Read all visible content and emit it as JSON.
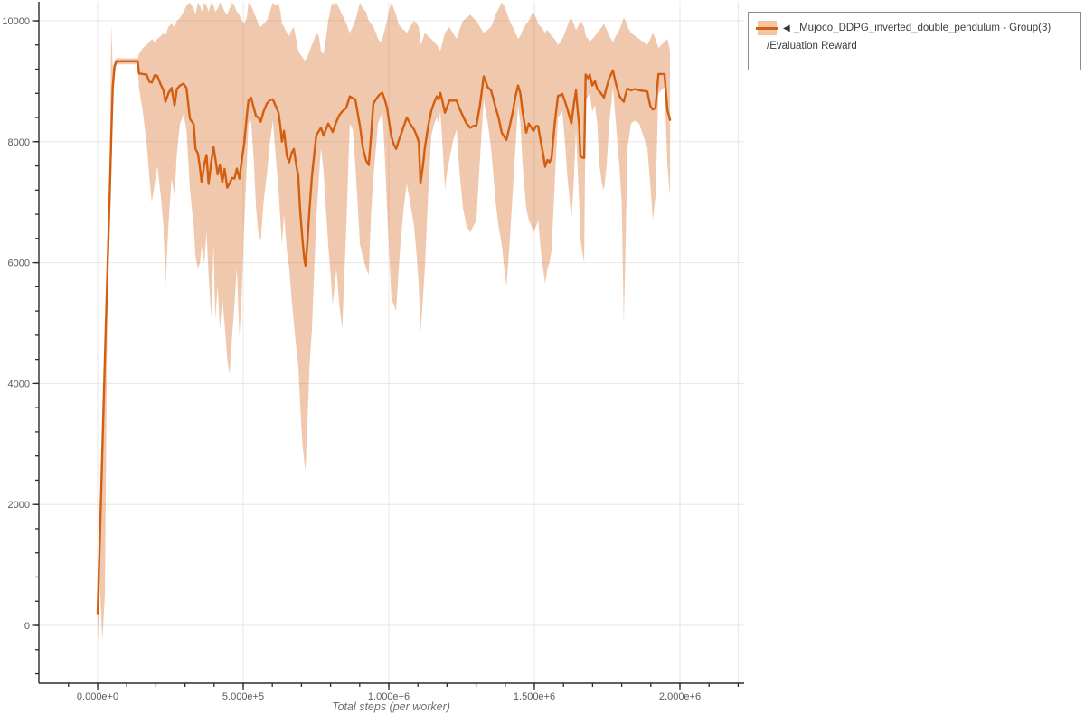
{
  "legend": {
    "collapse_icon": "◀",
    "series_label": "_Mujoco_DDPG_inverted_double_pendulum - Group(3)",
    "metric_label": "/Evaluation Reward"
  },
  "chart_data": {
    "type": "line",
    "title": "",
    "xlabel": "Total steps (per worker)",
    "ylabel": "",
    "series_name": "_Mujoco_DDPG_inverted_double_pendulum - Group(3)",
    "metric": "/Evaluation Reward",
    "line_color": "#d35e0f",
    "band_opacity": 0.34,
    "band_fill_visual": "#f2c6a2",
    "grid_color": "#e7e7e7",
    "axis_color": "#2b2b2b",
    "tick_label_color": "#5a5a5a",
    "legend_position": "top-right outside",
    "grid": "on",
    "x_axis": {
      "ticks_k": [
        0,
        500,
        1000,
        1500,
        2000
      ],
      "labels": [
        "0.000e+0",
        "5.000e+5",
        "1.000e+6",
        "1.500e+6",
        "2.000e+6"
      ],
      "minor_step_k": 100,
      "grid_extra_k": [
        2200
      ],
      "range_k": [
        -130,
        2215
      ]
    },
    "y_axis": {
      "ticks": [
        0,
        2000,
        4000,
        6000,
        8000,
        10000
      ],
      "labels": [
        "0",
        "2000",
        "4000",
        "6000",
        "8000",
        "10000"
      ],
      "minor_step": 400,
      "minor_range": [
        -800,
        10000
      ],
      "range": [
        -960,
        10330
      ]
    },
    "points_format": [
      "steps_thousands",
      "mean_reward",
      "band_low",
      "band_high"
    ],
    "points": [
      [
        0,
        200,
        -250,
        500
      ],
      [
        8,
        1500,
        600,
        1900
      ],
      [
        16,
        2900,
        -250,
        3300
      ],
      [
        25,
        4400,
        500,
        4800
      ],
      [
        34,
        5900,
        5400,
        6300
      ],
      [
        42,
        7200,
        6700,
        7700
      ],
      [
        47,
        8100,
        7500,
        9930
      ],
      [
        52,
        8900,
        8500,
        9200
      ],
      [
        58,
        9250,
        9100,
        9350
      ],
      [
        65,
        9330,
        9280,
        9380
      ],
      [
        90,
        9330,
        9280,
        9380
      ],
      [
        115,
        9330,
        9280,
        9380
      ],
      [
        138,
        9330,
        9280,
        9380
      ],
      [
        142,
        9130,
        8900,
        9450
      ],
      [
        155,
        9120,
        8500,
        9550
      ],
      [
        168,
        9110,
        8000,
        9600
      ],
      [
        178,
        8990,
        7400,
        9650
      ],
      [
        186,
        8980,
        7000,
        9700
      ],
      [
        196,
        9100,
        7300,
        9650
      ],
      [
        205,
        9090,
        7600,
        9700
      ],
      [
        217,
        8940,
        7100,
        9750
      ],
      [
        226,
        8850,
        6600,
        9800
      ],
      [
        233,
        8660,
        5600,
        9750
      ],
      [
        243,
        8800,
        6600,
        9900
      ],
      [
        254,
        8890,
        7400,
        9950
      ],
      [
        264,
        8600,
        7100,
        9900
      ],
      [
        272,
        8870,
        7800,
        10000
      ],
      [
        283,
        8930,
        8300,
        10050
      ],
      [
        295,
        8960,
        8450,
        10150
      ],
      [
        305,
        8890,
        8200,
        10250
      ],
      [
        317,
        8380,
        7200,
        10300
      ],
      [
        330,
        8290,
        6600,
        10200
      ],
      [
        336,
        7880,
        6100,
        10100
      ],
      [
        344,
        7810,
        5900,
        10300
      ],
      [
        352,
        7550,
        6000,
        10250
      ],
      [
        357,
        7330,
        6280,
        10150
      ],
      [
        366,
        7620,
        5980,
        10300
      ],
      [
        374,
        7780,
        6500,
        10250
      ],
      [
        381,
        7300,
        5800,
        10150
      ],
      [
        390,
        7660,
        5100,
        10300
      ],
      [
        398,
        7910,
        6300,
        10250
      ],
      [
        404,
        7730,
        5070,
        10150
      ],
      [
        412,
        7460,
        5600,
        10200
      ],
      [
        420,
        7610,
        4900,
        10300
      ],
      [
        428,
        7330,
        5400,
        10250
      ],
      [
        436,
        7550,
        5000,
        10150
      ],
      [
        445,
        7240,
        4400,
        10100
      ],
      [
        453,
        7310,
        4150,
        10200
      ],
      [
        462,
        7400,
        4800,
        10300
      ],
      [
        470,
        7390,
        5300,
        10250
      ],
      [
        478,
        7555,
        5900,
        10150
      ],
      [
        487,
        7390,
        4770,
        10100
      ],
      [
        495,
        7700,
        5500,
        10000
      ],
      [
        503,
        7960,
        6600,
        9950
      ],
      [
        512,
        8420,
        7600,
        10050
      ],
      [
        518,
        8680,
        8300,
        10300
      ],
      [
        527,
        8730,
        8350,
        10250
      ],
      [
        536,
        8560,
        7700,
        10150
      ],
      [
        544,
        8420,
        6900,
        10050
      ],
      [
        552,
        8400,
        6500,
        9950
      ],
      [
        560,
        8330,
        6350,
        9900
      ],
      [
        570,
        8500,
        7000,
        9950
      ],
      [
        581,
        8630,
        7450,
        10000
      ],
      [
        592,
        8690,
        8000,
        10150
      ],
      [
        602,
        8700,
        8350,
        10300
      ],
      [
        611,
        8600,
        7800,
        10250
      ],
      [
        621,
        8480,
        7200,
        10300
      ],
      [
        628,
        8240,
        6700,
        10150
      ],
      [
        633,
        8000,
        6300,
        9950
      ],
      [
        640,
        8180,
        6800,
        9900
      ],
      [
        650,
        7760,
        6200,
        9800
      ],
      [
        658,
        7660,
        5900,
        9750
      ],
      [
        666,
        7810,
        5400,
        9850
      ],
      [
        674,
        7880,
        5000,
        9900
      ],
      [
        682,
        7620,
        4600,
        9700
      ],
      [
        689,
        7435,
        4300,
        9500
      ],
      [
        695,
        6900,
        3700,
        9450
      ],
      [
        703,
        6400,
        3000,
        9400
      ],
      [
        710,
        6050,
        2700,
        9350
      ],
      [
        714,
        5950,
        2550,
        9350
      ],
      [
        720,
        6300,
        3300,
        9400
      ],
      [
        728,
        6900,
        4300,
        9500
      ],
      [
        736,
        7435,
        4900,
        9600
      ],
      [
        744,
        7800,
        5900,
        9700
      ],
      [
        751,
        8100,
        6700,
        9800
      ],
      [
        760,
        8180,
        7400,
        9750
      ],
      [
        767,
        8230,
        7900,
        9500
      ],
      [
        776,
        8100,
        7500,
        9450
      ],
      [
        784,
        8200,
        6900,
        9700
      ],
      [
        792,
        8300,
        6300,
        10000
      ],
      [
        800,
        8230,
        5800,
        10200
      ],
      [
        807,
        8160,
        5300,
        10300
      ],
      [
        814,
        8250,
        5600,
        10250
      ],
      [
        820,
        8330,
        5900,
        10300
      ],
      [
        830,
        8440,
        5300,
        10200
      ],
      [
        840,
        8500,
        4900,
        10100
      ],
      [
        854,
        8560,
        6600,
        9950
      ],
      [
        866,
        8750,
        8300,
        9800
      ],
      [
        876,
        8720,
        8200,
        9900
      ],
      [
        885,
        8700,
        7600,
        10000
      ],
      [
        893,
        8480,
        7000,
        10150
      ],
      [
        901,
        8260,
        6300,
        10300
      ],
      [
        911,
        7900,
        6100,
        10200
      ],
      [
        922,
        7690,
        5900,
        10150
      ],
      [
        931,
        7615,
        5800,
        10000
      ],
      [
        939,
        8100,
        6800,
        9950
      ],
      [
        947,
        8630,
        7400,
        9900
      ],
      [
        956,
        8700,
        7900,
        9800
      ],
      [
        963,
        8750,
        8300,
        9700
      ],
      [
        971,
        8790,
        8400,
        9650
      ],
      [
        978,
        8810,
        8500,
        9700
      ],
      [
        986,
        8700,
        7800,
        9850
      ],
      [
        994,
        8560,
        6900,
        10000
      ],
      [
        1002,
        8300,
        6100,
        10200
      ],
      [
        1009,
        8080,
        5400,
        10300
      ],
      [
        1017,
        7960,
        5300,
        10200
      ],
      [
        1025,
        7880,
        5200,
        10100
      ],
      [
        1033,
        8000,
        5800,
        9950
      ],
      [
        1040,
        8100,
        6300,
        9900
      ],
      [
        1051,
        8250,
        6900,
        9850
      ],
      [
        1062,
        8400,
        7300,
        9800
      ],
      [
        1073,
        8300,
        7000,
        9900
      ],
      [
        1087,
        8200,
        6600,
        10000
      ],
      [
        1096,
        8100,
        6100,
        9950
      ],
      [
        1103,
        7990,
        5600,
        9900
      ],
      [
        1109,
        7310,
        4850,
        9600
      ],
      [
        1117,
        7600,
        5400,
        9700
      ],
      [
        1124,
        7900,
        5900,
        9800
      ],
      [
        1135,
        8250,
        7100,
        9750
      ],
      [
        1146,
        8510,
        8100,
        9700
      ],
      [
        1156,
        8650,
        8300,
        9650
      ],
      [
        1165,
        8750,
        8400,
        9600
      ],
      [
        1171,
        8700,
        8300,
        9550
      ],
      [
        1177,
        8810,
        8500,
        9500
      ],
      [
        1185,
        8650,
        7900,
        9650
      ],
      [
        1193,
        8480,
        7200,
        9800
      ],
      [
        1200,
        8570,
        7500,
        9850
      ],
      [
        1208,
        8680,
        7700,
        9900
      ],
      [
        1220,
        8680,
        8000,
        9800
      ],
      [
        1233,
        8680,
        8200,
        9700
      ],
      [
        1243,
        8550,
        7500,
        9850
      ],
      [
        1255,
        8420,
        6900,
        10000
      ],
      [
        1267,
        8300,
        6600,
        10050
      ],
      [
        1280,
        8230,
        6500,
        10100
      ],
      [
        1290,
        8260,
        6600,
        10050
      ],
      [
        1301,
        8270,
        6700,
        10000
      ],
      [
        1313,
        8600,
        7700,
        9900
      ],
      [
        1326,
        9080,
        8700,
        9800
      ],
      [
        1340,
        8900,
        8300,
        9850
      ],
      [
        1351,
        8850,
        7900,
        9900
      ],
      [
        1360,
        8700,
        7400,
        10000
      ],
      [
        1367,
        8560,
        7000,
        10100
      ],
      [
        1377,
        8400,
        6600,
        10200
      ],
      [
        1388,
        8150,
        6300,
        10300
      ],
      [
        1397,
        8080,
        5900,
        10250
      ],
      [
        1404,
        8030,
        5600,
        10150
      ],
      [
        1415,
        8250,
        6300,
        10000
      ],
      [
        1426,
        8500,
        7200,
        9900
      ],
      [
        1435,
        8750,
        7900,
        9800
      ],
      [
        1444,
        8930,
        8600,
        9700
      ],
      [
        1452,
        8800,
        8300,
        9750
      ],
      [
        1460,
        8480,
        7600,
        9850
      ],
      [
        1472,
        8150,
        6900,
        9950
      ],
      [
        1481,
        8300,
        6700,
        10000
      ],
      [
        1490,
        8230,
        6600,
        10100
      ],
      [
        1497,
        8180,
        6500,
        10150
      ],
      [
        1506,
        8260,
        6600,
        10050
      ],
      [
        1513,
        8260,
        6700,
        9950
      ],
      [
        1522,
        8000,
        6200,
        9900
      ],
      [
        1530,
        7800,
        5900,
        9850
      ],
      [
        1537,
        7585,
        5650,
        9800
      ],
      [
        1545,
        7700,
        5900,
        9850
      ],
      [
        1552,
        7660,
        6000,
        9800
      ],
      [
        1559,
        7730,
        6200,
        9750
      ],
      [
        1570,
        8300,
        7300,
        9700
      ],
      [
        1581,
        8760,
        8400,
        9600
      ],
      [
        1589,
        8770,
        8450,
        9650
      ],
      [
        1596,
        8790,
        8500,
        9700
      ],
      [
        1605,
        8670,
        8000,
        9800
      ],
      [
        1612,
        8560,
        7500,
        9900
      ],
      [
        1620,
        8430,
        7100,
        10000
      ],
      [
        1627,
        8300,
        6700,
        10050
      ],
      [
        1635,
        8600,
        7300,
        9950
      ],
      [
        1643,
        8850,
        8200,
        9850
      ],
      [
        1649,
        8500,
        7500,
        9900
      ],
      [
        1654,
        8260,
        7000,
        9950
      ],
      [
        1658,
        7760,
        6400,
        10000
      ],
      [
        1664,
        7740,
        6200,
        9950
      ],
      [
        1671,
        7730,
        6000,
        9900
      ],
      [
        1676,
        9110,
        8700,
        9750
      ],
      [
        1685,
        9050,
        8750,
        9700
      ],
      [
        1690,
        9110,
        8800,
        9650
      ],
      [
        1699,
        8930,
        8500,
        9700
      ],
      [
        1708,
        9000,
        8600,
        9750
      ],
      [
        1716,
        8870,
        8300,
        9800
      ],
      [
        1724,
        8830,
        7600,
        9850
      ],
      [
        1732,
        8780,
        7300,
        9900
      ],
      [
        1739,
        8730,
        7200,
        9950
      ],
      [
        1748,
        8900,
        7600,
        9850
      ],
      [
        1757,
        9050,
        8300,
        9750
      ],
      [
        1770,
        9180,
        8900,
        9650
      ],
      [
        1780,
        8960,
        8300,
        9750
      ],
      [
        1792,
        8760,
        7600,
        9850
      ],
      [
        1800,
        8700,
        7000,
        9950
      ],
      [
        1807,
        8660,
        5000,
        10050
      ],
      [
        1813,
        8780,
        6200,
        10000
      ],
      [
        1820,
        8880,
        7900,
        9900
      ],
      [
        1832,
        8850,
        8300,
        9800
      ],
      [
        1845,
        8870,
        8350,
        9750
      ],
      [
        1860,
        8850,
        8300,
        9700
      ],
      [
        1874,
        8840,
        8100,
        9650
      ],
      [
        1888,
        8830,
        7900,
        9600
      ],
      [
        1898,
        8590,
        7300,
        9700
      ],
      [
        1907,
        8530,
        6700,
        9800
      ],
      [
        1916,
        8560,
        7100,
        9700
      ],
      [
        1926,
        9120,
        8800,
        9550
      ],
      [
        1936,
        9120,
        8850,
        9600
      ],
      [
        1947,
        9120,
        8900,
        9650
      ],
      [
        1957,
        8520,
        7600,
        9700
      ],
      [
        1966,
        8360,
        7100,
        9500
      ]
    ]
  }
}
